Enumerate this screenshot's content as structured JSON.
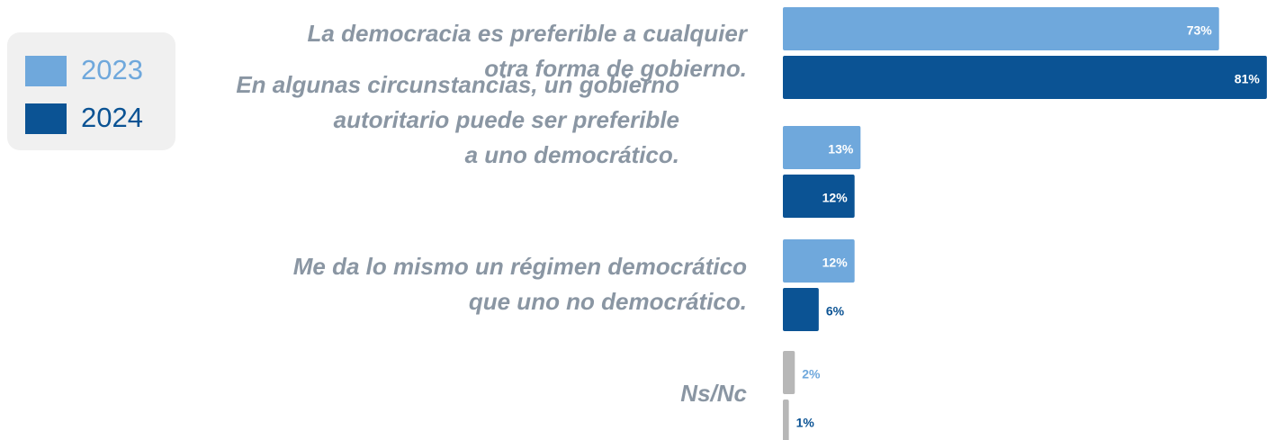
{
  "chart_data": {
    "type": "bar",
    "orientation": "horizontal",
    "categories": [
      "La democracia es preferible a cualquier\notra forma de gobierno.",
      "En algunas circunstancias, un gobierno\nautoritario puede ser preferible\na uno democrático.",
      "Me da lo mismo un régimen democrático\nque uno no democrático.",
      "Ns/Nc"
    ],
    "series": [
      {
        "name": "2023",
        "color": "#6fa8dc",
        "point_colors": [
          "#6fa8dc",
          "#6fa8dc",
          "#6fa8dc",
          "#b7b7b7"
        ],
        "values": [
          73,
          13,
          12,
          2
        ],
        "value_labels": [
          "73%",
          "13%",
          "12%",
          "2%"
        ]
      },
      {
        "name": "2024",
        "color": "#0b5394",
        "point_colors": [
          "#0b5394",
          "#0b5394",
          "#0b5394",
          "#b7b7b7"
        ],
        "values": [
          81,
          12,
          6,
          1
        ],
        "value_labels": [
          "81%",
          "12%",
          "6%",
          "1%"
        ]
      }
    ],
    "legend": "top-left"
  }
}
